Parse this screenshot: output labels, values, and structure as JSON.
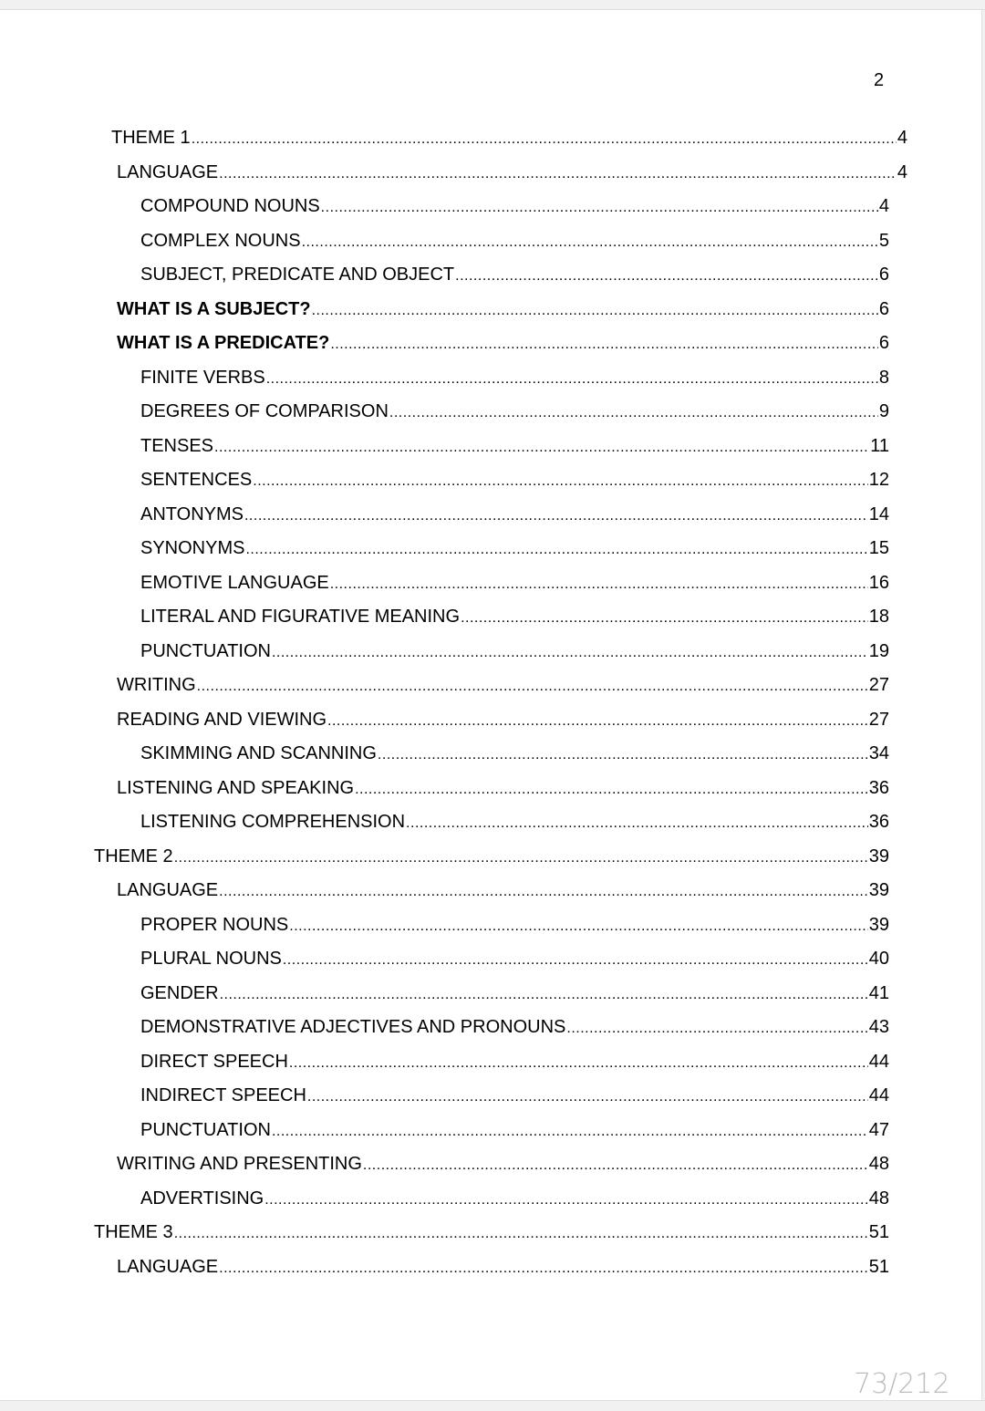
{
  "viewer": {
    "page_counter": "73/212"
  },
  "document": {
    "page_number": "2",
    "toc": [
      {
        "title": "THEME 1",
        "page": "4",
        "level": 0,
        "bold": false
      },
      {
        "title": "LANGUAGE",
        "page": "4",
        "level": 1,
        "bold": false
      },
      {
        "title": "COMPOUND NOUNS",
        "page": "4",
        "level": 2,
        "bold": false
      },
      {
        "title": "COMPLEX NOUNS",
        "page": "5",
        "level": 2,
        "bold": false
      },
      {
        "title": "SUBJECT, PREDICATE AND OBJECT",
        "page": "6",
        "level": 2,
        "bold": false
      },
      {
        "title": "WHAT IS A SUBJECT?",
        "page": "6",
        "level": 1,
        "bold": true
      },
      {
        "title": "WHAT IS A PREDICATE?",
        "page": "6",
        "level": 1,
        "bold": true
      },
      {
        "title": "FINITE VERBS",
        "page": "8",
        "level": 2,
        "bold": false
      },
      {
        "title": "DEGREES OF COMPARISON",
        "page": "9",
        "level": 2,
        "bold": false
      },
      {
        "title": "TENSES",
        "page": "11",
        "level": 2,
        "bold": false
      },
      {
        "title": "SENTENCES",
        "page": "12",
        "level": 2,
        "bold": false
      },
      {
        "title": "ANTONYMS",
        "page": "14",
        "level": 2,
        "bold": false
      },
      {
        "title": "SYNONYMS",
        "page": "15",
        "level": 2,
        "bold": false
      },
      {
        "title": "EMOTIVE LANGUAGE",
        "page": "16",
        "level": 2,
        "bold": false
      },
      {
        "title": "LITERAL AND FIGURATIVE MEANING",
        "page": "18",
        "level": 2,
        "bold": false
      },
      {
        "title": "PUNCTUATION",
        "page": "19",
        "level": 2,
        "bold": false
      },
      {
        "title": "WRITING",
        "page": "27",
        "level": 1,
        "bold": false
      },
      {
        "title": "READING AND VIEWING",
        "page": "27",
        "level": 1,
        "bold": false
      },
      {
        "title": "SKIMMING AND SCANNING",
        "page": "34",
        "level": 2,
        "bold": false
      },
      {
        "title": "LISTENING AND SPEAKING",
        "page": "36",
        "level": 1,
        "bold": false
      },
      {
        "title": "LISTENING COMPREHENSION",
        "page": "36",
        "level": 2,
        "bold": false
      },
      {
        "title": "THEME 2",
        "page": "39",
        "level": 0,
        "bold": false
      },
      {
        "title": "LANGUAGE",
        "page": "39",
        "level": 1,
        "bold": false
      },
      {
        "title": "PROPER NOUNS",
        "page": "39",
        "level": 2,
        "bold": false
      },
      {
        "title": "PLURAL NOUNS",
        "page": "40",
        "level": 2,
        "bold": false
      },
      {
        "title": "GENDER",
        "page": "41",
        "level": 2,
        "bold": false
      },
      {
        "title": "DEMONSTRATIVE ADJECTIVES AND PRONOUNS",
        "page": "43",
        "level": 2,
        "bold": false
      },
      {
        "title": "DIRECT SPEECH",
        "page": "44",
        "level": 2,
        "bold": false
      },
      {
        "title": "INDIRECT SPEECH",
        "page": "44",
        "level": 2,
        "bold": false
      },
      {
        "title": "PUNCTUATION",
        "page": "47",
        "level": 2,
        "bold": false
      },
      {
        "title": "WRITING AND PRESENTING",
        "page": "48",
        "level": 1,
        "bold": false
      },
      {
        "title": "ADVERTISING",
        "page": "48",
        "level": 2,
        "bold": false
      },
      {
        "title": "THEME 3",
        "page": "51",
        "level": 0,
        "bold": false
      },
      {
        "title": "LANGUAGE",
        "page": "51",
        "level": 1,
        "bold": false
      }
    ]
  }
}
